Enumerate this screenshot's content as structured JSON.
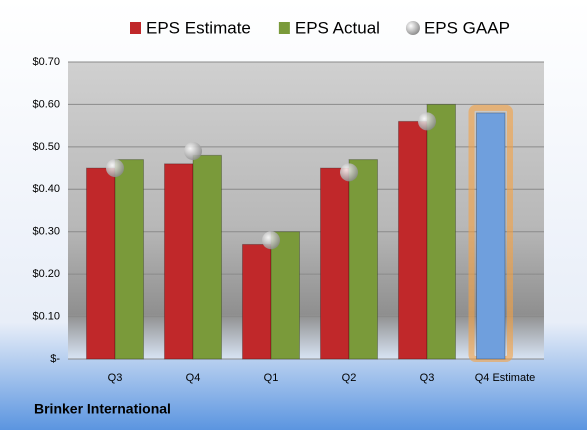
{
  "chart_data": {
    "type": "bar",
    "categories": [
      "Q3",
      "Q4",
      "Q1",
      "Q2",
      "Q3",
      "Q4 Estimate"
    ],
    "series": [
      {
        "name": "EPS Estimate",
        "color": "#c0282a",
        "colors": [
          "#c0282a",
          "#c0282a",
          "#c0282a",
          "#c0282a",
          "#c0282a",
          "#6f9fdd"
        ],
        "values": [
          0.45,
          0.46,
          0.27,
          0.45,
          0.56,
          0.58
        ]
      },
      {
        "name": "EPS Actual",
        "color": "#7a9a3a",
        "values": [
          0.47,
          0.48,
          0.3,
          0.47,
          0.6,
          null
        ]
      },
      {
        "name": "EPS GAAP",
        "type": "scatter",
        "color": "#a8a8a8",
        "values": [
          0.45,
          0.49,
          0.28,
          0.44,
          0.56,
          null
        ]
      }
    ],
    "ylim": [
      0,
      0.7
    ],
    "yticks": [
      {
        "value": 0,
        "label": "$-"
      },
      {
        "value": 0.1,
        "label": "$0.10"
      },
      {
        "value": 0.2,
        "label": "$0.20"
      },
      {
        "value": 0.3,
        "label": "$0.30"
      },
      {
        "value": 0.4,
        "label": "$0.40"
      },
      {
        "value": 0.5,
        "label": "$0.50"
      },
      {
        "value": 0.6,
        "label": "$0.60"
      },
      {
        "value": 0.7,
        "label": "$0.70"
      }
    ],
    "grid": true,
    "legend": "top",
    "footer": "Brinker International"
  }
}
